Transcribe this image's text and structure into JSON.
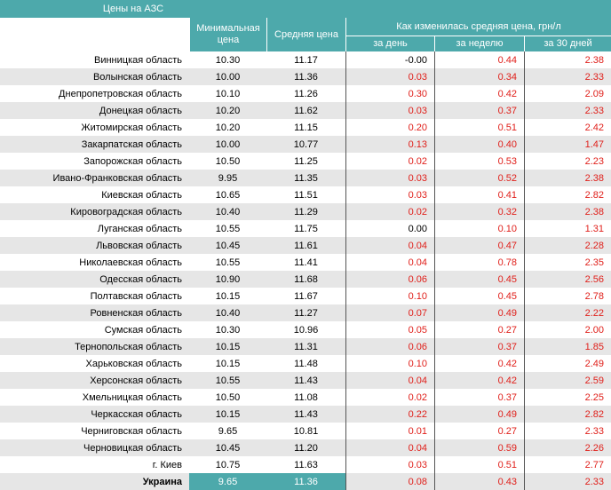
{
  "header": {
    "title": "Цены на АЗС",
    "columns": [
      "Минимальная цена",
      "Средняя цена"
    ],
    "change_group": "Как изменилась средняя цена, грн/л",
    "change_columns": [
      "за день",
      "за неделю",
      "за 30 дней"
    ]
  },
  "table": {
    "rows": [
      [
        "Винницкая область",
        "10.30",
        "11.17",
        "-0.00",
        "0.44",
        "2.38"
      ],
      [
        "Волынская область",
        "10.00",
        "11.36",
        "0.03",
        "0.34",
        "2.33"
      ],
      [
        "Днепропетровская область",
        "10.10",
        "11.26",
        "0.30",
        "0.42",
        "2.09"
      ],
      [
        "Донецкая область",
        "10.20",
        "11.62",
        "0.03",
        "0.37",
        "2.33"
      ],
      [
        "Житомирская область",
        "10.20",
        "11.15",
        "0.20",
        "0.51",
        "2.42"
      ],
      [
        "Закарпатская область",
        "10.00",
        "10.77",
        "0.13",
        "0.40",
        "1.47"
      ],
      [
        "Запорожская область",
        "10.50",
        "11.25",
        "0.02",
        "0.53",
        "2.23"
      ],
      [
        "Ивано-Франковская область",
        "9.95",
        "11.35",
        "0.03",
        "0.52",
        "2.38"
      ],
      [
        "Киевская область",
        "10.65",
        "11.51",
        "0.03",
        "0.41",
        "2.82"
      ],
      [
        "Кировоградская область",
        "10.40",
        "11.29",
        "0.02",
        "0.32",
        "2.38"
      ],
      [
        "Луганская область",
        "10.55",
        "11.75",
        "0.00",
        "0.10",
        "1.31"
      ],
      [
        "Львовская область",
        "10.45",
        "11.61",
        "0.04",
        "0.47",
        "2.28"
      ],
      [
        "Николаевская область",
        "10.55",
        "11.41",
        "0.04",
        "0.78",
        "2.35"
      ],
      [
        "Одесская область",
        "10.90",
        "11.68",
        "0.06",
        "0.45",
        "2.56"
      ],
      [
        "Полтавская область",
        "10.15",
        "11.67",
        "0.10",
        "0.45",
        "2.78"
      ],
      [
        "Ровненская область",
        "10.40",
        "11.27",
        "0.07",
        "0.49",
        "2.22"
      ],
      [
        "Сумская область",
        "10.30",
        "10.96",
        "0.05",
        "0.27",
        "2.00"
      ],
      [
        "Тернопольская область",
        "10.15",
        "11.31",
        "0.06",
        "0.37",
        "1.85"
      ],
      [
        "Харьковская область",
        "10.15",
        "11.48",
        "0.10",
        "0.42",
        "2.49"
      ],
      [
        "Херсонская область",
        "10.55",
        "11.43",
        "0.04",
        "0.42",
        "2.59"
      ],
      [
        "Хмельницкая область",
        "10.50",
        "11.08",
        "0.02",
        "0.37",
        "2.25"
      ],
      [
        "Черкасская область",
        "10.15",
        "11.43",
        "0.22",
        "0.49",
        "2.82"
      ],
      [
        "Черниговская область",
        "9.65",
        "10.81",
        "0.01",
        "0.27",
        "2.33"
      ],
      [
        "Черновицкая область",
        "10.45",
        "11.20",
        "0.04",
        "0.59",
        "2.26"
      ],
      [
        "г. Киев",
        "10.75",
        "11.63",
        "0.03",
        "0.51",
        "2.77"
      ],
      [
        "Украина",
        "9.65",
        "11.36",
        "0.08",
        "0.43",
        "2.33"
      ]
    ]
  }
}
